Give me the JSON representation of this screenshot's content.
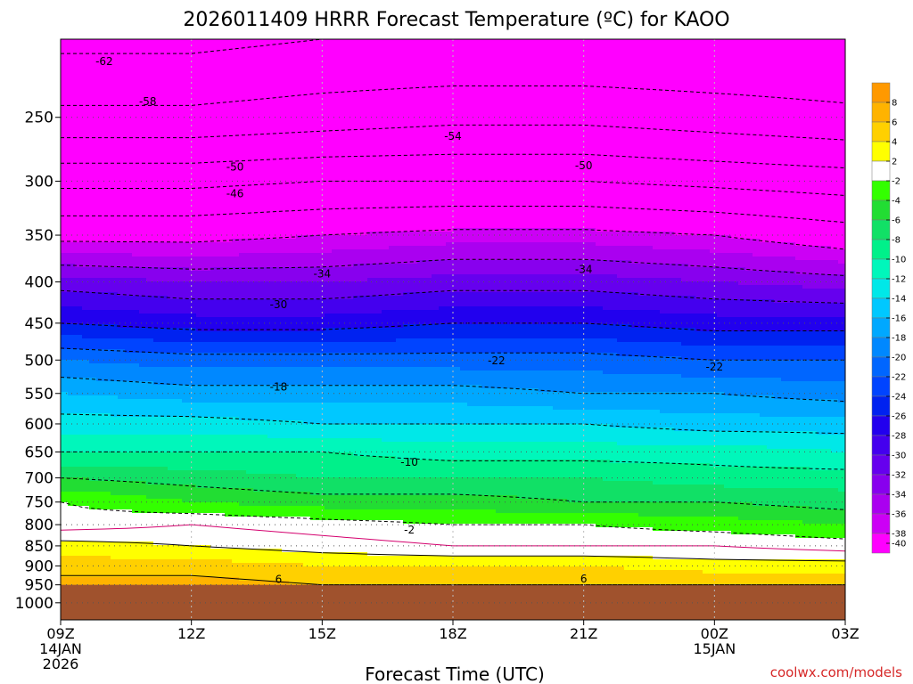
{
  "chart_data": {
    "type": "heatmap",
    "title": "2026011409 HRRR Forecast Temperature (ºC) for KAOO",
    "xlabel": "Forecast Time (UTC)",
    "credit": "coolwx.com/models",
    "x_ticks": [
      {
        "hour": 0,
        "label": "09Z",
        "date": "14JAN",
        "year": "2026"
      },
      {
        "hour": 3,
        "label": "12Z"
      },
      {
        "hour": 6,
        "label": "15Z"
      },
      {
        "hour": 9,
        "label": "18Z"
      },
      {
        "hour": 12,
        "label": "21Z"
      },
      {
        "hour": 15,
        "label": "00Z",
        "date": "15JAN"
      },
      {
        "hour": 18,
        "label": "03Z"
      }
    ],
    "x_range_hours": [
      0,
      18
    ],
    "y_axis": "pressure (hPa)",
    "y_range": [
      200,
      1050
    ],
    "y_ticks": [
      250,
      300,
      350,
      400,
      450,
      500,
      550,
      600,
      650,
      700,
      750,
      800,
      850,
      900,
      950,
      1000
    ],
    "surface_pressure_hPa": 950,
    "colorbar": {
      "levels": [
        8,
        6,
        4,
        2,
        -2,
        -4,
        -6,
        -8,
        -10,
        -12,
        -14,
        -16,
        -18,
        -20,
        -22,
        -24,
        -26,
        -28,
        -30,
        -32,
        -34,
        -36,
        -38,
        -40
      ],
      "colors": [
        "#ff9900",
        "#ffb300",
        "#ffd000",
        "#ffff00",
        "#ffffff",
        "#33ff00",
        "#22dd33",
        "#11e066",
        "#00f08a",
        "#00f7bb",
        "#00e8e8",
        "#00c8ff",
        "#00a8ff",
        "#0088ff",
        "#0066ff",
        "#0044ff",
        "#0022f0",
        "#2200ee",
        "#4400ee",
        "#6600ee",
        "#8800ee",
        "#aa00f0",
        "#cc00f5",
        "#ff00ff"
      ]
    },
    "temperature_profile": [
      {
        "p": 200,
        "t": [
          -63,
          -63,
          -62,
          -62,
          -62,
          -62,
          -62
        ]
      },
      {
        "p": 250,
        "t": [
          -57,
          -57,
          -56,
          -55,
          -55,
          -56,
          -57
        ]
      },
      {
        "p": 300,
        "t": [
          -47,
          -47,
          -46,
          -46,
          -46,
          -47,
          -48
        ]
      },
      {
        "p": 350,
        "t": [
          -39,
          -39,
          -38,
          -37,
          -37,
          -38,
          -40
        ]
      },
      {
        "p": 400,
        "t": [
          -31,
          -32,
          -32,
          -31,
          -31,
          -32,
          -33
        ]
      },
      {
        "p": 450,
        "t": [
          -26,
          -27,
          -27,
          -26,
          -26,
          -27,
          -27
        ]
      },
      {
        "p": 500,
        "t": [
          -20,
          -21,
          -21,
          -21,
          -21,
          -22,
          -22
        ]
      },
      {
        "p": 550,
        "t": [
          -16,
          -17,
          -17,
          -17,
          -18,
          -18,
          -19
        ]
      },
      {
        "p": 600,
        "t": [
          -13,
          -13,
          -14,
          -14,
          -14,
          -15,
          -15
        ]
      },
      {
        "p": 650,
        "t": [
          -10,
          -10,
          -10,
          -11,
          -11,
          -11,
          -12
        ]
      },
      {
        "p": 700,
        "t": [
          -6,
          -7,
          -8,
          -8,
          -8,
          -9,
          -9
        ]
      },
      {
        "p": 750,
        "t": [
          -2,
          -4,
          -5,
          -5,
          -6,
          -6,
          -7
        ]
      },
      {
        "p": 800,
        "t": [
          -1,
          0,
          -1,
          -2,
          -2,
          -3,
          -4
        ]
      },
      {
        "p": 850,
        "t": [
          3,
          2,
          1,
          0,
          0,
          0,
          -1
        ]
      },
      {
        "p": 900,
        "t": [
          5,
          5,
          4,
          4,
          4,
          3,
          3
        ]
      },
      {
        "p": 950,
        "t": [
          7,
          7,
          6,
          6,
          6,
          6,
          6
        ]
      }
    ],
    "contour_labels": [
      {
        "value": "-62",
        "hour": 1.0,
        "p": 213
      },
      {
        "value": "-58",
        "hour": 2.0,
        "p": 239
      },
      {
        "value": "-54",
        "hour": 9.0,
        "p": 264
      },
      {
        "value": "-50",
        "hour": 4.0,
        "p": 288
      },
      {
        "value": "-50",
        "hour": 12.0,
        "p": 287
      },
      {
        "value": "-46",
        "hour": 4.0,
        "p": 311
      },
      {
        "value": "-34",
        "hour": 6.0,
        "p": 391
      },
      {
        "value": "-34",
        "hour": 12.0,
        "p": 386
      },
      {
        "value": "-30",
        "hour": 5.0,
        "p": 427
      },
      {
        "value": "-22",
        "hour": 10.0,
        "p": 501
      },
      {
        "value": "-22",
        "hour": 15.0,
        "p": 510
      },
      {
        "value": "-18",
        "hour": 5.0,
        "p": 540
      },
      {
        "value": "-10",
        "hour": 8.0,
        "p": 669
      },
      {
        "value": "-2",
        "hour": 8.0,
        "p": 812
      },
      {
        "value": "6",
        "hour": 5.0,
        "p": 935
      },
      {
        "value": "6",
        "hour": 12.0,
        "p": 934
      }
    ]
  }
}
